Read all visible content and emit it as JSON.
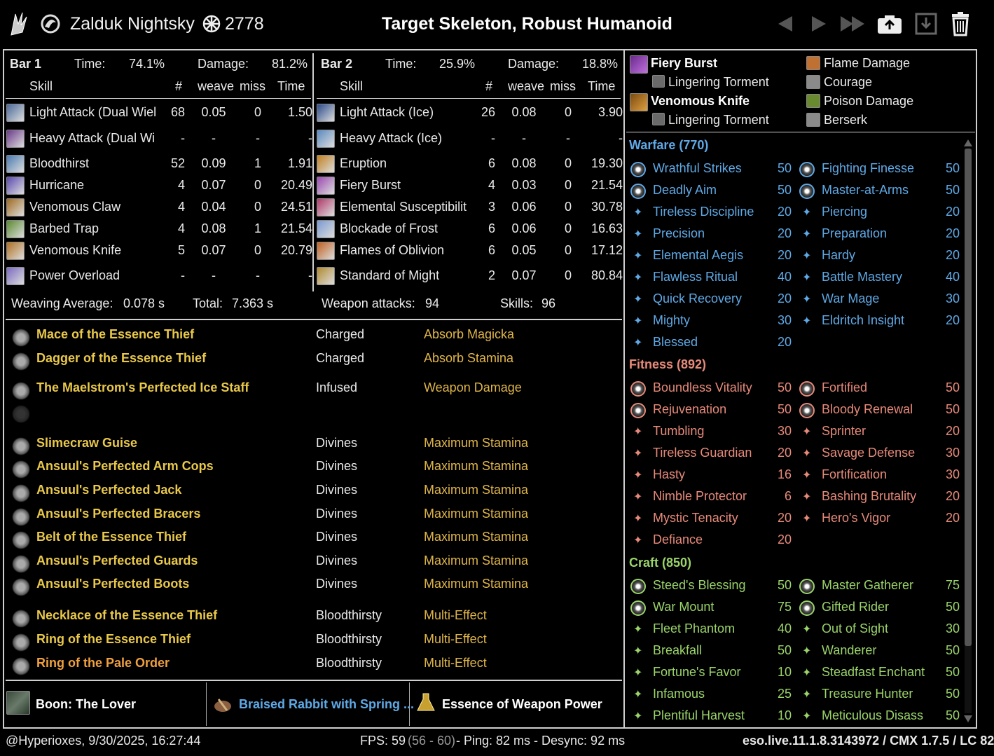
{
  "header": {
    "player": "Zalduk Nightsky",
    "cp": "2778",
    "title": "Target Skeleton, Robust Humanoid"
  },
  "bar1": {
    "label": "Bar 1",
    "time_label": "Time:",
    "time": "74.1%",
    "damage_label": "Damage:",
    "damage": "81.2%",
    "cols": [
      "Skill",
      "#",
      "weave",
      "miss",
      "Time"
    ],
    "rows": [
      [
        "Light Attack (Dual Wiel",
        "68",
        "0.05",
        "0",
        "1.50"
      ],
      [
        "Heavy Attack (Dual Wi",
        "-",
        "-",
        "-",
        "-"
      ],
      [
        "Bloodthirst",
        "52",
        "0.09",
        "1",
        "1.91"
      ],
      [
        "Hurricane",
        "4",
        "0.07",
        "0",
        "20.49"
      ],
      [
        "Venomous Claw",
        "4",
        "0.04",
        "0",
        "24.51"
      ],
      [
        "Barbed Trap",
        "4",
        "0.08",
        "1",
        "21.54"
      ],
      [
        "Venomous Knife",
        "5",
        "0.07",
        "0",
        "20.79"
      ],
      [
        "Power Overload",
        "-",
        "-",
        "-",
        "-"
      ]
    ]
  },
  "bar2": {
    "label": "Bar 2",
    "time_label": "Time:",
    "time": "25.9%",
    "damage_label": "Damage:",
    "damage": "18.8%",
    "cols": [
      "Skill",
      "#",
      "weave",
      "miss",
      "Time"
    ],
    "rows": [
      [
        "Light Attack (Ice)",
        "26",
        "0.08",
        "0",
        "3.90"
      ],
      [
        "Heavy Attack (Ice)",
        "-",
        "-",
        "-",
        "-"
      ],
      [
        "Eruption",
        "6",
        "0.08",
        "0",
        "19.30"
      ],
      [
        "Fiery Burst",
        "4",
        "0.03",
        "0",
        "21.54"
      ],
      [
        "Elemental Susceptibilit",
        "3",
        "0.06",
        "0",
        "30.78"
      ],
      [
        "Blockade of Frost",
        "6",
        "0.06",
        "0",
        "16.63"
      ],
      [
        "Flames of Oblivion",
        "6",
        "0.05",
        "0",
        "17.12"
      ],
      [
        "Standard of Might",
        "2",
        "0.07",
        "0",
        "80.84"
      ]
    ]
  },
  "summary": {
    "weaving_label": "Weaving Average:",
    "weaving": "0.078 s",
    "total_label": "Total:",
    "total": "7.363 s",
    "weapon_label": "Weapon attacks:",
    "weapon": "94",
    "skills_label": "Skills:",
    "skills": "96"
  },
  "gear": [
    {
      "name": "Mace of the Essence Thief",
      "trait": "Charged",
      "enchant": "Absorb Magicka",
      "color": "#e9c84a"
    },
    {
      "name": "Dagger of the Essence Thief",
      "trait": "Charged",
      "enchant": "Absorb Stamina",
      "color": "#e9c84a"
    },
    {
      "name": "The Maelstrom's Perfected Ice Staff",
      "trait": "Infused",
      "enchant": "Weapon Damage",
      "color": "#e9c84a"
    },
    {
      "name": "Slimecraw Guise",
      "trait": "Divines",
      "enchant": "Maximum Stamina",
      "color": "#e9c84a"
    },
    {
      "name": "Ansuul's Perfected Arm Cops",
      "trait": "Divines",
      "enchant": "Maximum Stamina",
      "color": "#e9c84a"
    },
    {
      "name": "Ansuul's Perfected Jack",
      "trait": "Divines",
      "enchant": "Maximum Stamina",
      "color": "#e9c84a"
    },
    {
      "name": "Ansuul's Perfected Bracers",
      "trait": "Divines",
      "enchant": "Maximum Stamina",
      "color": "#e9c84a"
    },
    {
      "name": "Belt of the Essence Thief",
      "trait": "Divines",
      "enchant": "Maximum Stamina",
      "color": "#e9c84a"
    },
    {
      "name": "Ansuul's Perfected Guards",
      "trait": "Divines",
      "enchant": "Maximum Stamina",
      "color": "#e9c84a"
    },
    {
      "name": "Ansuul's Perfected Boots",
      "trait": "Divines",
      "enchant": "Maximum Stamina",
      "color": "#e9c84a"
    },
    {
      "name": "Necklace of the Essence Thief",
      "trait": "Bloodthirsty",
      "enchant": "Multi-Effect",
      "color": "#e9c84a"
    },
    {
      "name": "Ring of the Essence Thief",
      "trait": "Bloodthirsty",
      "enchant": "Multi-Effect",
      "color": "#e9c84a"
    },
    {
      "name": "Ring of the Pale Order",
      "trait": "Bloodthirsty",
      "enchant": "Multi-Effect",
      "color": "#f0a040"
    }
  ],
  "buffs": {
    "boon": "Boon: The Lover",
    "food": "Braised Rabbit with Spring ...",
    "potion": "Essence of Weapon Power"
  },
  "skills_top": {
    "s1": "Fiery Burst",
    "s1sub": "Lingering Torment",
    "s2": "Venomous Knife",
    "s2sub": "Lingering Torment",
    "p1": "Flame Damage",
    "p2": "Courage",
    "p3": "Poison Damage",
    "p4": "Berserk"
  },
  "warfare": {
    "title": "Warfare (770)",
    "items": [
      [
        "Wrathful Strikes",
        "50",
        "Fighting Finesse",
        "50"
      ],
      [
        "Deadly Aim",
        "50",
        "Master-at-Arms",
        "50"
      ],
      [
        "Tireless Discipline",
        "20",
        "Piercing",
        "20"
      ],
      [
        "Precision",
        "20",
        "Preparation",
        "20"
      ],
      [
        "Elemental Aegis",
        "20",
        "Hardy",
        "20"
      ],
      [
        "Flawless Ritual",
        "40",
        "Battle Mastery",
        "40"
      ],
      [
        "Quick Recovery",
        "20",
        "War Mage",
        "30"
      ],
      [
        "Mighty",
        "30",
        "Eldritch Insight",
        "20"
      ],
      [
        "Blessed",
        "20",
        "",
        ""
      ]
    ]
  },
  "fitness": {
    "title": "Fitness (892)",
    "items": [
      [
        "Boundless Vitality",
        "50",
        "Fortified",
        "50"
      ],
      [
        "Rejuvenation",
        "50",
        "Bloody Renewal",
        "50"
      ],
      [
        "Tumbling",
        "30",
        "Sprinter",
        "20"
      ],
      [
        "Tireless Guardian",
        "20",
        "Savage Defense",
        "30"
      ],
      [
        "Hasty",
        "16",
        "Fortification",
        "30"
      ],
      [
        "Nimble Protector",
        "6",
        "Bashing Brutality",
        "20"
      ],
      [
        "Mystic Tenacity",
        "20",
        "Hero's Vigor",
        "20"
      ],
      [
        "Defiance",
        "20",
        "",
        ""
      ]
    ]
  },
  "craft": {
    "title": "Craft (850)",
    "items": [
      [
        "Steed's Blessing",
        "50",
        "Master Gatherer",
        "75"
      ],
      [
        "War Mount",
        "75",
        "Gifted Rider",
        "50"
      ],
      [
        "Fleet Phantom",
        "40",
        "Out of Sight",
        "30"
      ],
      [
        "Breakfall",
        "50",
        "Wanderer",
        "50"
      ],
      [
        "Fortune's Favor",
        "10",
        "Steadfast Enchant",
        "50"
      ],
      [
        "Infamous",
        "25",
        "Treasure Hunter",
        "50"
      ],
      [
        "Plentiful Harvest",
        "10",
        "Meticulous Disass",
        "50"
      ]
    ]
  },
  "footer": {
    "left": "@Hyperioxes, 9/30/2025, 16:27:44",
    "fps_label": "FPS: 59",
    "fps_range": "(56 - 60)",
    "ping": "- Ping: 82 ms - Desync: 92 ms",
    "right": "eso.live.11.1.8.3143972 / CMX 1.7.5 / LC 82"
  },
  "colors": {
    "warfare": "#5fa9e6",
    "fitness": "#e88a7a",
    "craft": "#9bd46a",
    "gold": "#e0b64a"
  }
}
